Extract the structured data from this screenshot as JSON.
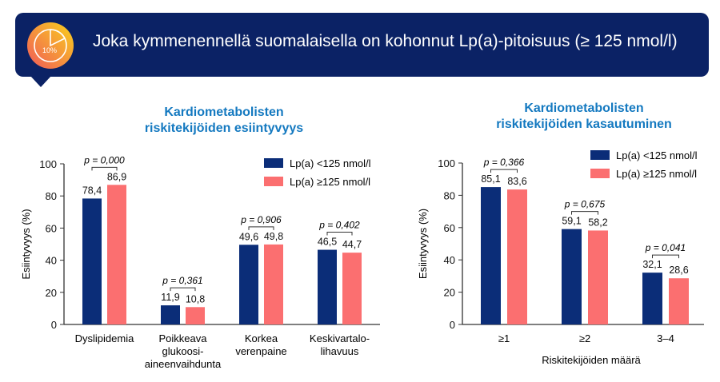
{
  "banner": {
    "title": "Joka kymmenennellä suomalaisella on kohonnut Lp(a)-pitoisuus (≥ 125 nmol/l)",
    "icon": "pie-chart-10-percent-icon",
    "icon_label": "10%"
  },
  "colors": {
    "low": "#0b2d78",
    "high": "#fb6f70",
    "title": "#1479c0",
    "banner": "#0b2265"
  },
  "chart_data": [
    {
      "type": "bar",
      "title_line1": "Kardiometabolisten",
      "title_line2": "riskitekijöiden esiintyvyys",
      "ylabel": "Esiintyvyys (%)",
      "xlabel": "",
      "ylim": [
        0,
        100
      ],
      "yticks": [
        "0",
        "20",
        "40",
        "60",
        "80",
        "100"
      ],
      "categories": [
        [
          "Dyslipidemia"
        ],
        [
          "Poikkeava",
          "glukoosi-",
          "aineenvaihdunta"
        ],
        [
          "Korkea",
          "verenpaine"
        ],
        [
          "Keskivartalo-",
          "lihavuus"
        ]
      ],
      "series": [
        {
          "name": "Lp(a) <125 nmol/l",
          "values": [
            78.4,
            11.9,
            49.6,
            46.5
          ],
          "labels": [
            "78,4",
            "11,9",
            "49,6",
            "46,5"
          ]
        },
        {
          "name": "Lp(a) ≥125 nmol/l",
          "values": [
            86.9,
            10.8,
            49.8,
            44.7
          ],
          "labels": [
            "86,9",
            "10,8",
            "49,8",
            "44,7"
          ]
        }
      ],
      "pvalues": [
        "p = 0,000",
        "p = 0,361",
        "p = 0,906",
        "p = 0,402"
      ],
      "legend": "top-right"
    },
    {
      "type": "bar",
      "title_line1": "Kardiometabolisten",
      "title_line2": "riskitekijöiden kasautuminen",
      "ylabel": "Esiintyvyys (%)",
      "xlabel": "Riskitekijöiden määrä",
      "ylim": [
        0,
        100
      ],
      "yticks": [
        "0",
        "20",
        "40",
        "60",
        "80",
        "100"
      ],
      "categories": [
        [
          "≥1"
        ],
        [
          "≥2"
        ],
        [
          "3–4"
        ]
      ],
      "series": [
        {
          "name": "Lp(a) <125 nmol/l",
          "values": [
            85.1,
            59.1,
            32.1
          ],
          "labels": [
            "85,1",
            "59,1",
            "32,1"
          ]
        },
        {
          "name": "Lp(a) ≥125 nmol/l",
          "values": [
            83.6,
            58.2,
            28.6
          ],
          "labels": [
            "83,6",
            "58,2",
            "28,6"
          ]
        }
      ],
      "pvalues": [
        "p = 0,366",
        "p = 0,675",
        "p = 0,041"
      ],
      "legend": "top-right"
    }
  ]
}
